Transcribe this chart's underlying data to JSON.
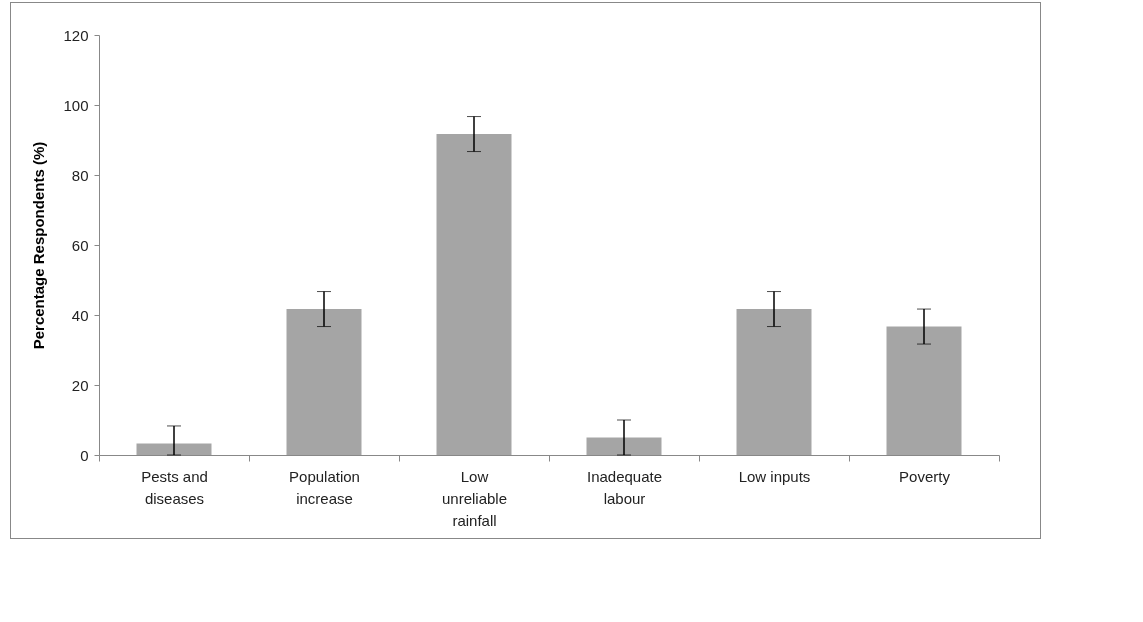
{
  "chart_data": {
    "type": "bar",
    "ylabel": "Percentage Respondents (%)",
    "categories": [
      "Pests and diseases",
      "Population increase",
      "Low unreliable rainfall",
      "Inadequate labour",
      "Low inputs",
      "Poverty"
    ],
    "values": [
      3.3,
      41.7,
      91.7,
      5,
      41.7,
      36.7
    ],
    "errors": [
      [
        0,
        8.3
      ],
      5,
      5,
      [
        0,
        10
      ],
      5,
      5
    ],
    "color": "#a5a5a5",
    "ylim": [
      0,
      120
    ],
    "yticks": [
      0,
      20,
      40,
      60,
      80,
      100,
      120
    ],
    "grid": false
  }
}
